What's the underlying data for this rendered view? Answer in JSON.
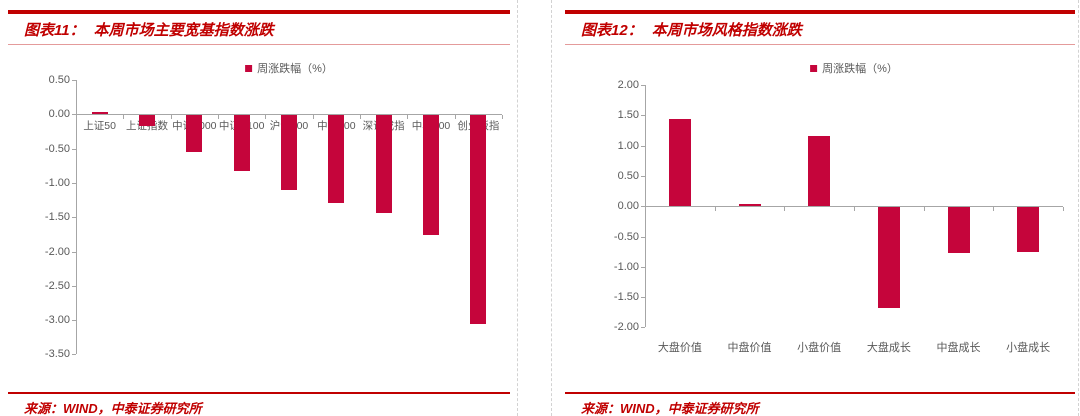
{
  "panels": [
    {
      "header_prefix": "图表11：",
      "header_title": "本周市场主要宽基指数涨跌",
      "legend_label": "周涨跌幅（%）",
      "source": "来源：WIND，中泰证券研究所"
    },
    {
      "header_prefix": "图表12：",
      "header_title": "本周市场风格指数涨跌",
      "legend_label": "周涨跌幅（%）",
      "source": "来源：WIND，中泰证券研究所"
    }
  ],
  "chart_data": [
    {
      "type": "bar",
      "title": "本周市场主要宽基指数涨跌",
      "legend": [
        "周涨跌幅（%）"
      ],
      "legend_position": "top-center",
      "categories": [
        "上证50",
        "上证指数",
        "中证1000",
        "中证A100",
        "沪深300",
        "中证500",
        "深证成指",
        "中小100",
        "创业板指"
      ],
      "values": [
        0.04,
        -0.16,
        -0.53,
        -0.81,
        -1.09,
        -1.28,
        -1.43,
        -1.75,
        -3.04
      ],
      "xlabel": "",
      "ylabel": "",
      "ylim": [
        -3.5,
        0.5
      ],
      "ytick_step": 0.5,
      "grid": false
    },
    {
      "type": "bar",
      "title": "本周市场风格指数涨跌",
      "legend": [
        "周涨跌幅（%）"
      ],
      "legend_position": "top-center",
      "categories": [
        "大盘价值",
        "中盘价值",
        "小盘价值",
        "大盘成长",
        "中盘成长",
        "小盘成长"
      ],
      "values": [
        1.44,
        0.03,
        1.16,
        -1.66,
        -0.75,
        -0.74
      ],
      "xlabel": "",
      "ylabel": "",
      "ylim": [
        -2.0,
        2.0
      ],
      "ytick_step": 0.5,
      "grid": false
    }
  ],
  "colors": {
    "accent_red": "#C00000",
    "bar_fill": "#C5053B",
    "axis_gray": "#A6A6A6",
    "label_gray": "#595959",
    "title_underline": "#E49B9B"
  }
}
